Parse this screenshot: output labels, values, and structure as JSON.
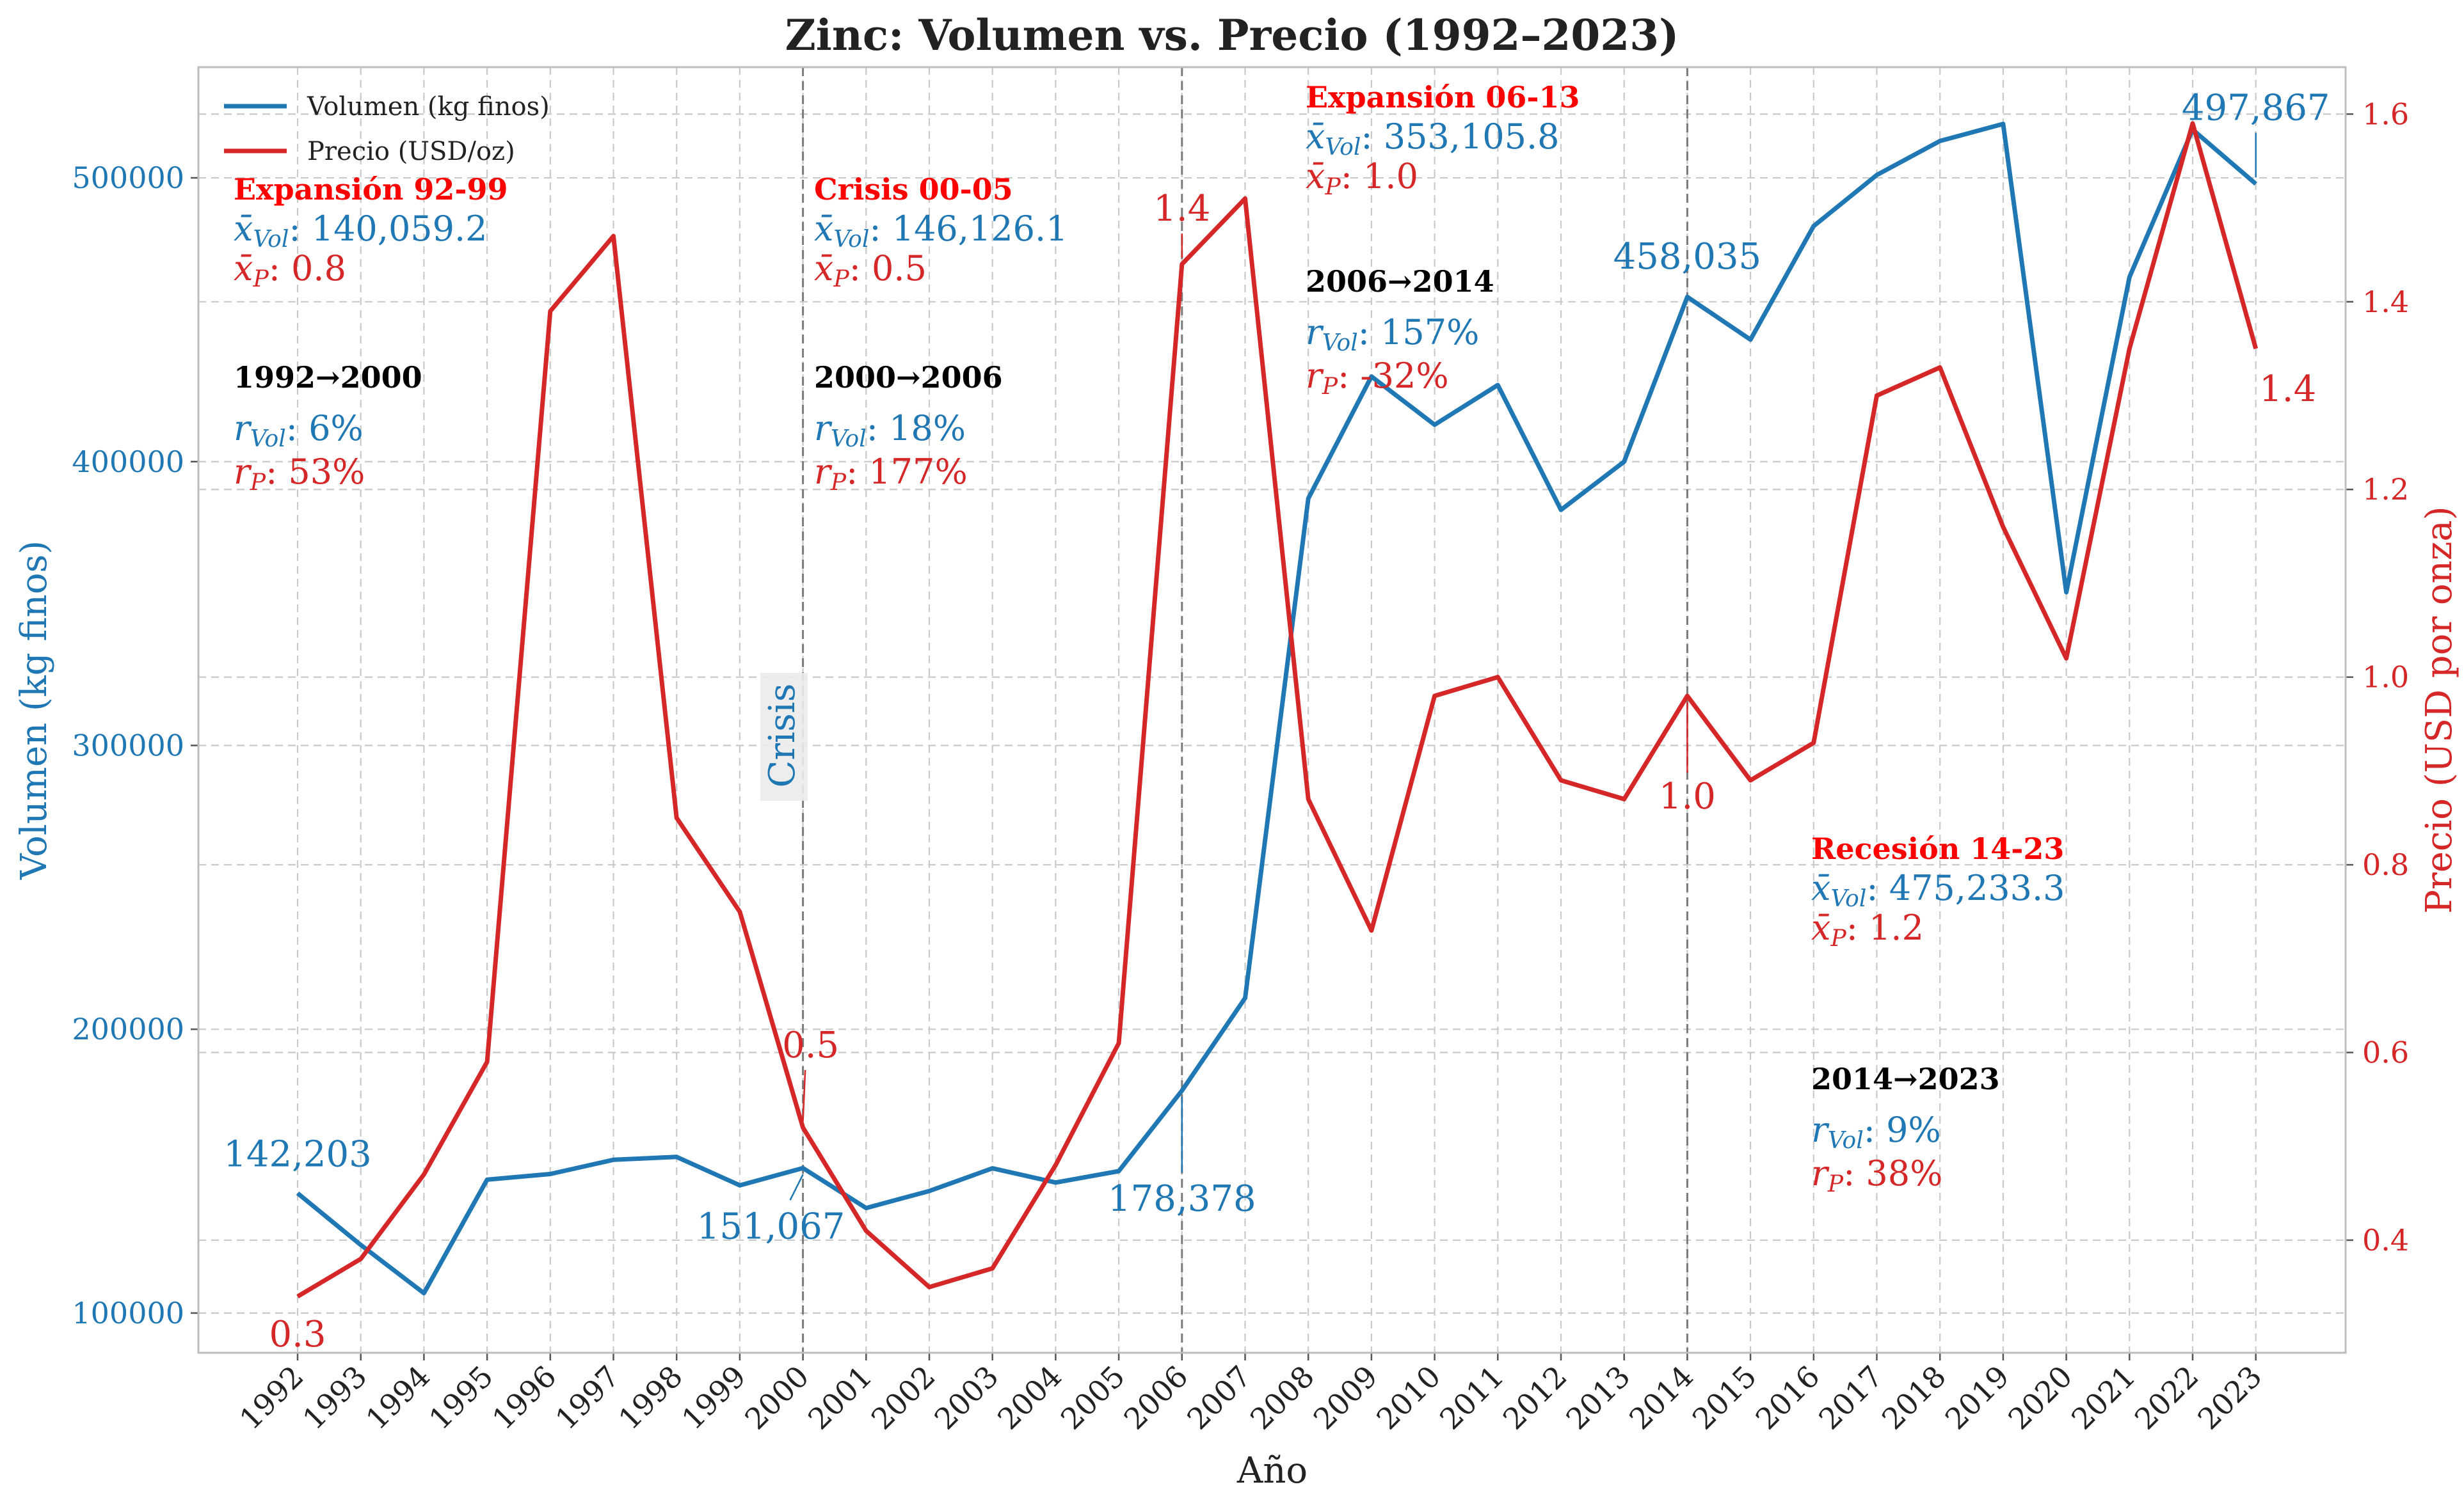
{
  "chart_data": {
    "type": "line",
    "title": "Zinc: Volumen vs. Precio (1992–2023)",
    "xlabel": "Año",
    "ylabel_left": "Volumen (kg finos)",
    "ylabel_right": "Precio (USD por onza)",
    "x": [
      1992,
      1993,
      1994,
      1995,
      1996,
      1997,
      1998,
      1999,
      2000,
      2001,
      2002,
      2003,
      2004,
      2005,
      2006,
      2007,
      2008,
      2009,
      2010,
      2011,
      2012,
      2013,
      2014,
      2015,
      2016,
      2017,
      2018,
      2019,
      2020,
      2021,
      2022,
      2023
    ],
    "series": [
      {
        "name": "Volumen (kg finos)",
        "axis": "left",
        "color": "#1f77b4",
        "values": [
          142203,
          124000,
          107000,
          147000,
          149000,
          154000,
          155000,
          145000,
          151067,
          137000,
          143000,
          151000,
          146000,
          150000,
          178378,
          211000,
          387000,
          430000,
          413000,
          427000,
          383000,
          400000,
          458035,
          443000,
          483000,
          501000,
          513000,
          519000,
          354000,
          465000,
          517000,
          497867
        ]
      },
      {
        "name": "Precio (USD/oz)",
        "axis": "right",
        "color": "#d62728",
        "values": [
          0.34,
          0.38,
          0.47,
          0.59,
          1.39,
          1.47,
          0.85,
          0.75,
          0.52,
          0.41,
          0.35,
          0.37,
          0.48,
          0.61,
          1.44,
          1.51,
          0.87,
          0.73,
          0.98,
          1.0,
          0.89,
          0.87,
          0.98,
          0.89,
          0.93,
          1.3,
          1.33,
          1.16,
          1.02,
          1.35,
          1.59,
          1.35
        ]
      }
    ],
    "ylim_left": [
      86000,
      539000
    ],
    "ylim_right": [
      0.28,
      1.65
    ],
    "yticks_left": [
      "100000",
      "200000",
      "300000",
      "400000",
      "500000"
    ],
    "yticks_left_values": [
      100000,
      200000,
      300000,
      400000,
      500000
    ],
    "yticks_right": [
      "0.4",
      "0.6",
      "0.8",
      "1.0",
      "1.2",
      "1.4",
      "1.6"
    ],
    "yticks_right_values": [
      0.4,
      0.6,
      0.8,
      1.0,
      1.2,
      1.4,
      1.6
    ],
    "xtick_labels": [
      "1992",
      "1993",
      "1994",
      "1995",
      "1996",
      "1997",
      "1998",
      "1999",
      "2000",
      "2001",
      "2002",
      "2003",
      "2004",
      "2005",
      "2006",
      "2007",
      "2008",
      "2009",
      "2010",
      "2011",
      "2012",
      "2013",
      "2014",
      "2015",
      "2016",
      "2017",
      "2018",
      "2019",
      "2020",
      "2021",
      "2022",
      "2023"
    ],
    "grid": true,
    "legend_position": "top-left",
    "vertical_lines": [
      2000,
      2006,
      2014
    ],
    "crisis_label": "Crisis",
    "periods": [
      {
        "title": "Expansión 92-99",
        "mean_vol": "140,059.2",
        "mean_p": "0.8",
        "range": "1992→2000",
        "r_vol": "6%",
        "r_p": "53%"
      },
      {
        "title": "Crisis 00-05",
        "mean_vol": "146,126.1",
        "mean_p": "0.5",
        "range": "2000→2006",
        "r_vol": "18%",
        "r_p": "177%"
      },
      {
        "title": "Expansión 06-13",
        "mean_vol": "353,105.8",
        "mean_p": "1.0",
        "range": "2006→2014",
        "r_vol": "157%",
        "r_p": "-32%"
      },
      {
        "title": "Recesión 14-23",
        "mean_vol": "475,233.3",
        "mean_p": "1.2",
        "range": "2014→2023",
        "r_vol": "9%",
        "r_p": "38%"
      }
    ],
    "point_labels_vol": [
      {
        "year": 1992,
        "text": "142,203"
      },
      {
        "year": 2000,
        "text": "151,067"
      },
      {
        "year": 2006,
        "text": "178,378"
      },
      {
        "year": 2014,
        "text": "458,035"
      },
      {
        "year": 2023,
        "text": "497,867"
      }
    ],
    "point_labels_p": [
      {
        "year": 1992,
        "text": "0.3"
      },
      {
        "year": 2000,
        "text": "0.5"
      },
      {
        "year": 2006,
        "text": "1.4"
      },
      {
        "year": 2014,
        "text": "1.0"
      },
      {
        "year": 2023,
        "text": "1.4"
      }
    ]
  }
}
